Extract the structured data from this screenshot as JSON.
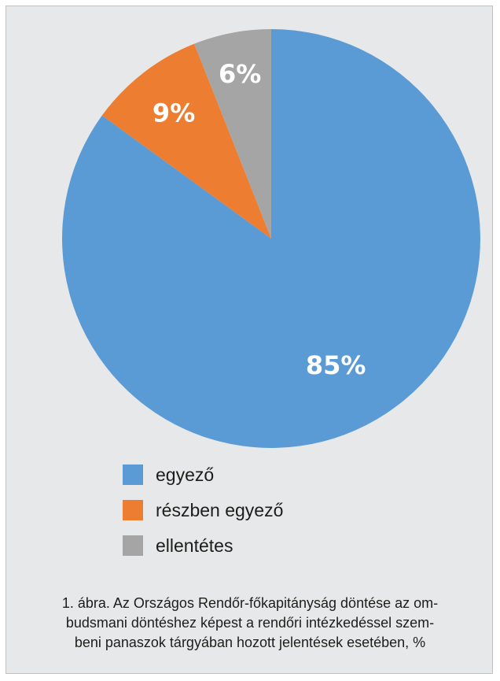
{
  "chart_data": {
    "type": "pie",
    "slices": [
      {
        "label": "egyező",
        "value": 85,
        "display": "85%",
        "color": "#5b9bd5"
      },
      {
        "label": "részben egyező",
        "value": 9,
        "display": "9%",
        "color": "#ed7d31"
      },
      {
        "label": "ellentétes",
        "value": 6,
        "display": "6%",
        "color": "#a5a5a5"
      }
    ],
    "legend_position": "bottom",
    "title": ""
  },
  "caption": {
    "lines": [
      "1. ábra. Az Országos Rendőr-főkapitányság döntése az om-",
      "budsmani döntéshez képest a rendőri intézkedéssel szem-",
      "beni panaszok tárgyában hozott jelentések esetében, %"
    ]
  }
}
